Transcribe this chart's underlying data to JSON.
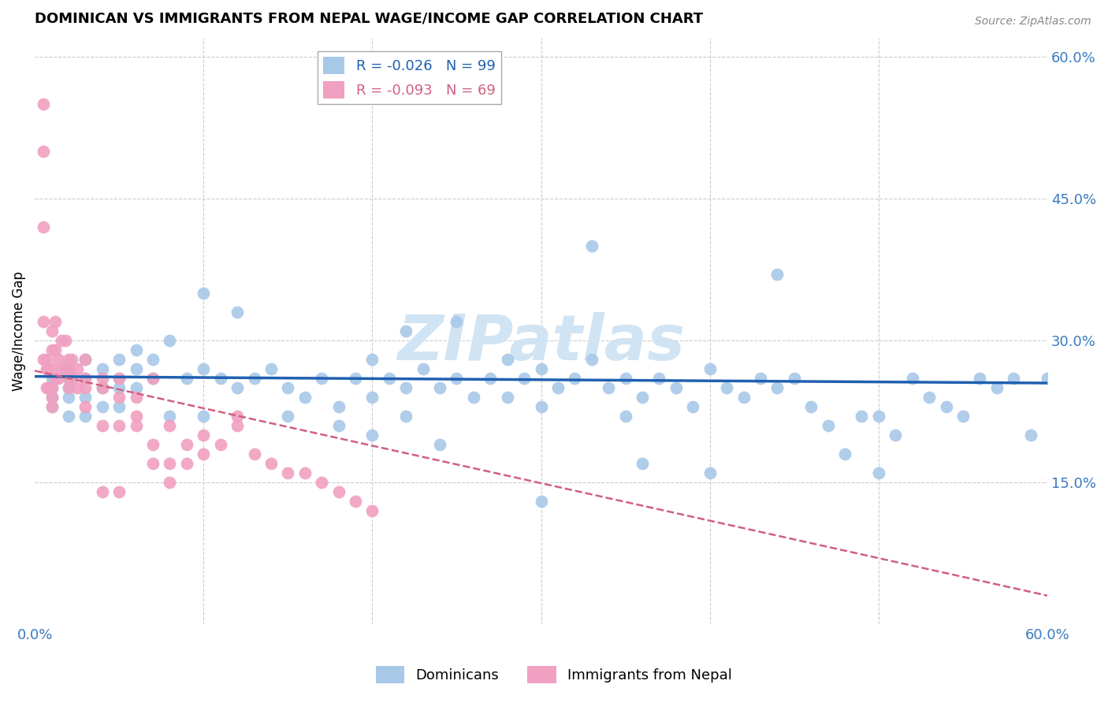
{
  "title": "DOMINICAN VS IMMIGRANTS FROM NEPAL WAGE/INCOME GAP CORRELATION CHART",
  "source": "Source: ZipAtlas.com",
  "ylabel": "Wage/Income Gap",
  "xlim": [
    0.0,
    0.6
  ],
  "ylim": [
    0.0,
    0.62
  ],
  "dominican_R": -0.026,
  "dominican_N": 99,
  "nepal_R": -0.093,
  "nepal_N": 69,
  "blue_color": "#a8c8e8",
  "pink_color": "#f0a0c0",
  "blue_line_color": "#2060b0",
  "pink_line_color": "#d06080",
  "watermark": "ZIPatlas",
  "watermark_color": "#d0e4f4",
  "legend_blue_label": "Dominicans",
  "legend_pink_label": "Immigrants from Nepal",
  "blue_line_y_start": 0.262,
  "blue_line_y_end": 0.255,
  "pink_line_y_start": 0.268,
  "pink_line_y_end": 0.03,
  "blue_scatter_x": [
    0.01,
    0.01,
    0.01,
    0.01,
    0.02,
    0.02,
    0.02,
    0.02,
    0.02,
    0.03,
    0.03,
    0.03,
    0.03,
    0.04,
    0.04,
    0.04,
    0.05,
    0.05,
    0.05,
    0.05,
    0.06,
    0.06,
    0.06,
    0.07,
    0.07,
    0.08,
    0.08,
    0.09,
    0.1,
    0.1,
    0.1,
    0.11,
    0.12,
    0.12,
    0.13,
    0.14,
    0.15,
    0.15,
    0.16,
    0.17,
    0.18,
    0.18,
    0.19,
    0.2,
    0.2,
    0.21,
    0.22,
    0.22,
    0.23,
    0.24,
    0.25,
    0.25,
    0.26,
    0.27,
    0.28,
    0.28,
    0.29,
    0.3,
    0.3,
    0.31,
    0.32,
    0.33,
    0.34,
    0.35,
    0.35,
    0.36,
    0.37,
    0.38,
    0.39,
    0.4,
    0.41,
    0.42,
    0.43,
    0.44,
    0.45,
    0.46,
    0.47,
    0.48,
    0.49,
    0.5,
    0.51,
    0.52,
    0.53,
    0.54,
    0.55,
    0.56,
    0.57,
    0.58,
    0.59,
    0.6,
    0.33,
    0.22,
    0.44,
    0.2,
    0.3,
    0.4,
    0.5,
    0.24,
    0.36
  ],
  "blue_scatter_y": [
    0.26,
    0.25,
    0.24,
    0.23,
    0.27,
    0.26,
    0.25,
    0.24,
    0.22,
    0.28,
    0.26,
    0.24,
    0.22,
    0.27,
    0.25,
    0.23,
    0.28,
    0.26,
    0.25,
    0.23,
    0.29,
    0.27,
    0.25,
    0.28,
    0.26,
    0.3,
    0.22,
    0.26,
    0.35,
    0.27,
    0.22,
    0.26,
    0.33,
    0.25,
    0.26,
    0.27,
    0.25,
    0.22,
    0.24,
    0.26,
    0.23,
    0.21,
    0.26,
    0.28,
    0.24,
    0.26,
    0.25,
    0.22,
    0.27,
    0.25,
    0.32,
    0.26,
    0.24,
    0.26,
    0.28,
    0.24,
    0.26,
    0.27,
    0.23,
    0.25,
    0.26,
    0.28,
    0.25,
    0.22,
    0.26,
    0.24,
    0.26,
    0.25,
    0.23,
    0.27,
    0.25,
    0.24,
    0.26,
    0.25,
    0.26,
    0.23,
    0.21,
    0.18,
    0.22,
    0.22,
    0.2,
    0.26,
    0.24,
    0.23,
    0.22,
    0.26,
    0.25,
    0.26,
    0.2,
    0.26,
    0.4,
    0.31,
    0.37,
    0.2,
    0.13,
    0.16,
    0.16,
    0.19,
    0.17
  ],
  "pink_scatter_x": [
    0.005,
    0.005,
    0.005,
    0.005,
    0.005,
    0.007,
    0.007,
    0.007,
    0.008,
    0.008,
    0.01,
    0.01,
    0.01,
    0.01,
    0.01,
    0.01,
    0.012,
    0.012,
    0.012,
    0.014,
    0.014,
    0.016,
    0.016,
    0.018,
    0.018,
    0.02,
    0.02,
    0.02,
    0.02,
    0.022,
    0.022,
    0.025,
    0.025,
    0.03,
    0.03,
    0.03,
    0.04,
    0.04,
    0.04,
    0.05,
    0.05,
    0.05,
    0.06,
    0.06,
    0.07,
    0.07,
    0.08,
    0.08,
    0.09,
    0.1,
    0.11,
    0.12,
    0.13,
    0.14,
    0.15,
    0.16,
    0.17,
    0.18,
    0.19,
    0.2,
    0.12,
    0.03,
    0.04,
    0.05,
    0.06,
    0.07,
    0.08,
    0.09,
    0.1
  ],
  "pink_scatter_y": [
    0.55,
    0.5,
    0.42,
    0.32,
    0.28,
    0.28,
    0.27,
    0.25,
    0.27,
    0.25,
    0.31,
    0.29,
    0.27,
    0.25,
    0.24,
    0.23,
    0.32,
    0.29,
    0.26,
    0.28,
    0.26,
    0.3,
    0.27,
    0.3,
    0.27,
    0.28,
    0.27,
    0.26,
    0.25,
    0.28,
    0.26,
    0.27,
    0.25,
    0.28,
    0.26,
    0.25,
    0.26,
    0.25,
    0.21,
    0.26,
    0.24,
    0.21,
    0.24,
    0.22,
    0.26,
    0.19,
    0.21,
    0.17,
    0.19,
    0.2,
    0.19,
    0.21,
    0.18,
    0.17,
    0.16,
    0.16,
    0.15,
    0.14,
    0.13,
    0.12,
    0.22,
    0.23,
    0.14,
    0.14,
    0.21,
    0.17,
    0.15,
    0.17,
    0.18
  ]
}
